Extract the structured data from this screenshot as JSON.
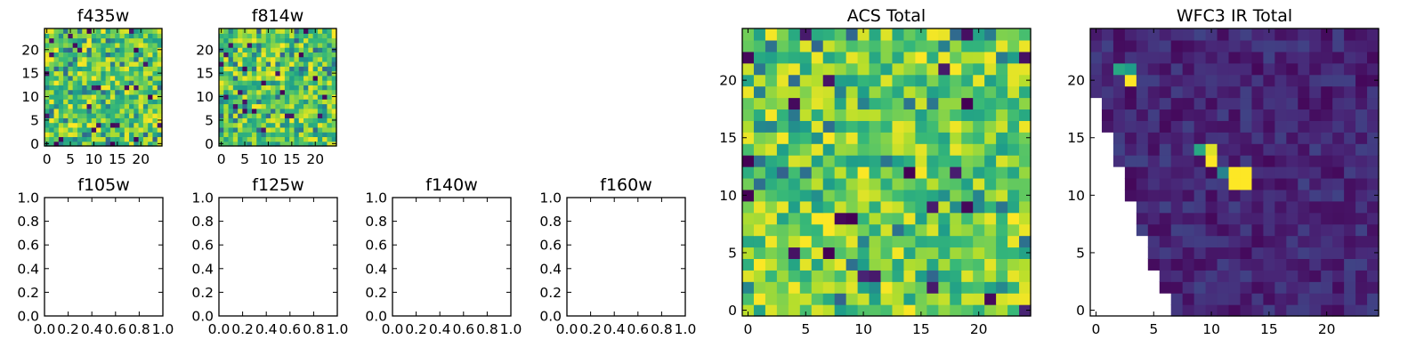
{
  "chart_data": [
    {
      "type": "heatmap",
      "title": "f435w",
      "xlim": [
        -0.5,
        24.5
      ],
      "ylim": [
        -0.5,
        24.5
      ],
      "xticks": [
        "0",
        "5",
        "10",
        "15",
        "20"
      ],
      "yticks": [
        "0",
        "5",
        "10",
        "15",
        "20"
      ],
      "grid_size": 25,
      "colormap": "viridis",
      "value_range": [
        0,
        1
      ],
      "pattern": "dense noise, mostly green/yellow with scattered dark-blue pixels"
    },
    {
      "type": "heatmap",
      "title": "f814w",
      "xlim": [
        -0.5,
        24.5
      ],
      "ylim": [
        -0.5,
        24.5
      ],
      "xticks": [
        "0",
        "5",
        "10",
        "15",
        "20"
      ],
      "yticks": [
        "0",
        "5",
        "10",
        "15",
        "20"
      ],
      "grid_size": 25,
      "colormap": "viridis",
      "value_range": [
        0,
        1
      ],
      "pattern": "dense noise, green/yellow with scattered dark-blue pixels"
    },
    {
      "type": "empty",
      "title": "f105w",
      "xlim": [
        0,
        1
      ],
      "ylim": [
        0,
        1
      ],
      "xticks": [
        "0.0",
        "0.2",
        "0.4",
        "0.6",
        "0.8",
        "1.0"
      ],
      "yticks": [
        "0.0",
        "0.2",
        "0.4",
        "0.6",
        "0.8",
        "1.0"
      ]
    },
    {
      "type": "empty",
      "title": "f125w",
      "xlim": [
        0,
        1
      ],
      "ylim": [
        0,
        1
      ],
      "xticks": [
        "0.0",
        "0.2",
        "0.4",
        "0.6",
        "0.8",
        "1.0"
      ],
      "yticks": [
        "0.0",
        "0.2",
        "0.4",
        "0.6",
        "0.8",
        "1.0"
      ]
    },
    {
      "type": "empty",
      "title": "f140w",
      "xlim": [
        0,
        1
      ],
      "ylim": [
        0,
        1
      ],
      "xticks": [
        "0.0",
        "0.2",
        "0.4",
        "0.6",
        "0.8",
        "1.0"
      ],
      "yticks": [
        "0.0",
        "0.2",
        "0.4",
        "0.6",
        "0.8",
        "1.0"
      ]
    },
    {
      "type": "empty",
      "title": "f160w",
      "xlim": [
        0,
        1
      ],
      "ylim": [
        0,
        1
      ],
      "xticks": [
        "0.0",
        "0.2",
        "0.4",
        "0.6",
        "0.8",
        "1.0"
      ],
      "yticks": [
        "0.0",
        "0.2",
        "0.4",
        "0.6",
        "0.8",
        "1.0"
      ]
    },
    {
      "type": "heatmap",
      "title": "ACS Total",
      "xlim": [
        -0.5,
        24.5
      ],
      "ylim": [
        -0.5,
        24.5
      ],
      "xticks": [
        "0",
        "5",
        "10",
        "15",
        "20"
      ],
      "yticks": [
        "0",
        "5",
        "10",
        "15",
        "20"
      ],
      "grid_size": 25,
      "colormap": "viridis",
      "value_range": [
        0,
        1
      ],
      "pattern": "noise, light green to yellow with a few dark-blue pixels",
      "notable_pixels": [
        {
          "x": 0,
          "y": 13,
          "value": 0.0
        },
        {
          "x": 0,
          "y": 10,
          "value": 0.0
        },
        {
          "x": 14,
          "y": 12,
          "value": 0.0
        },
        {
          "x": 9,
          "y": 8,
          "value": 0.0
        },
        {
          "x": 19,
          "y": 18,
          "value": 0.0
        },
        {
          "x": 4,
          "y": 5,
          "value": 0.05
        },
        {
          "x": 7,
          "y": 5,
          "value": 0.0
        },
        {
          "x": 10,
          "y": 3,
          "value": 0.1
        }
      ]
    },
    {
      "type": "heatmap",
      "title": "WFC3 IR Total",
      "xlim": [
        -0.5,
        24.5
      ],
      "ylim": [
        -0.5,
        24.5
      ],
      "xticks": [
        "0",
        "5",
        "10",
        "15",
        "20"
      ],
      "yticks": [
        "0",
        "5",
        "10",
        "15",
        "20"
      ],
      "grid_size": 25,
      "colormap": "viridis",
      "value_range": [
        0,
        1
      ],
      "pattern": "dark purple background, lower-left triangle masked (no data, white)",
      "notable_pixels": [
        {
          "x": 2,
          "y": 21,
          "value": 0.6
        },
        {
          "x": 3,
          "y": 21,
          "value": 0.55
        },
        {
          "x": 3,
          "y": 20,
          "value": 1.0
        },
        {
          "x": 9,
          "y": 14,
          "value": 0.6
        },
        {
          "x": 10,
          "y": 14,
          "value": 0.95
        },
        {
          "x": 10,
          "y": 13,
          "value": 1.0
        },
        {
          "x": 11,
          "y": 12,
          "value": 0.45
        },
        {
          "x": 12,
          "y": 12,
          "value": 1.0
        },
        {
          "x": 13,
          "y": 12,
          "value": 1.0
        },
        {
          "x": 12,
          "y": 11,
          "value": 1.0
        },
        {
          "x": 13,
          "y": 11,
          "value": 1.0
        }
      ]
    }
  ]
}
